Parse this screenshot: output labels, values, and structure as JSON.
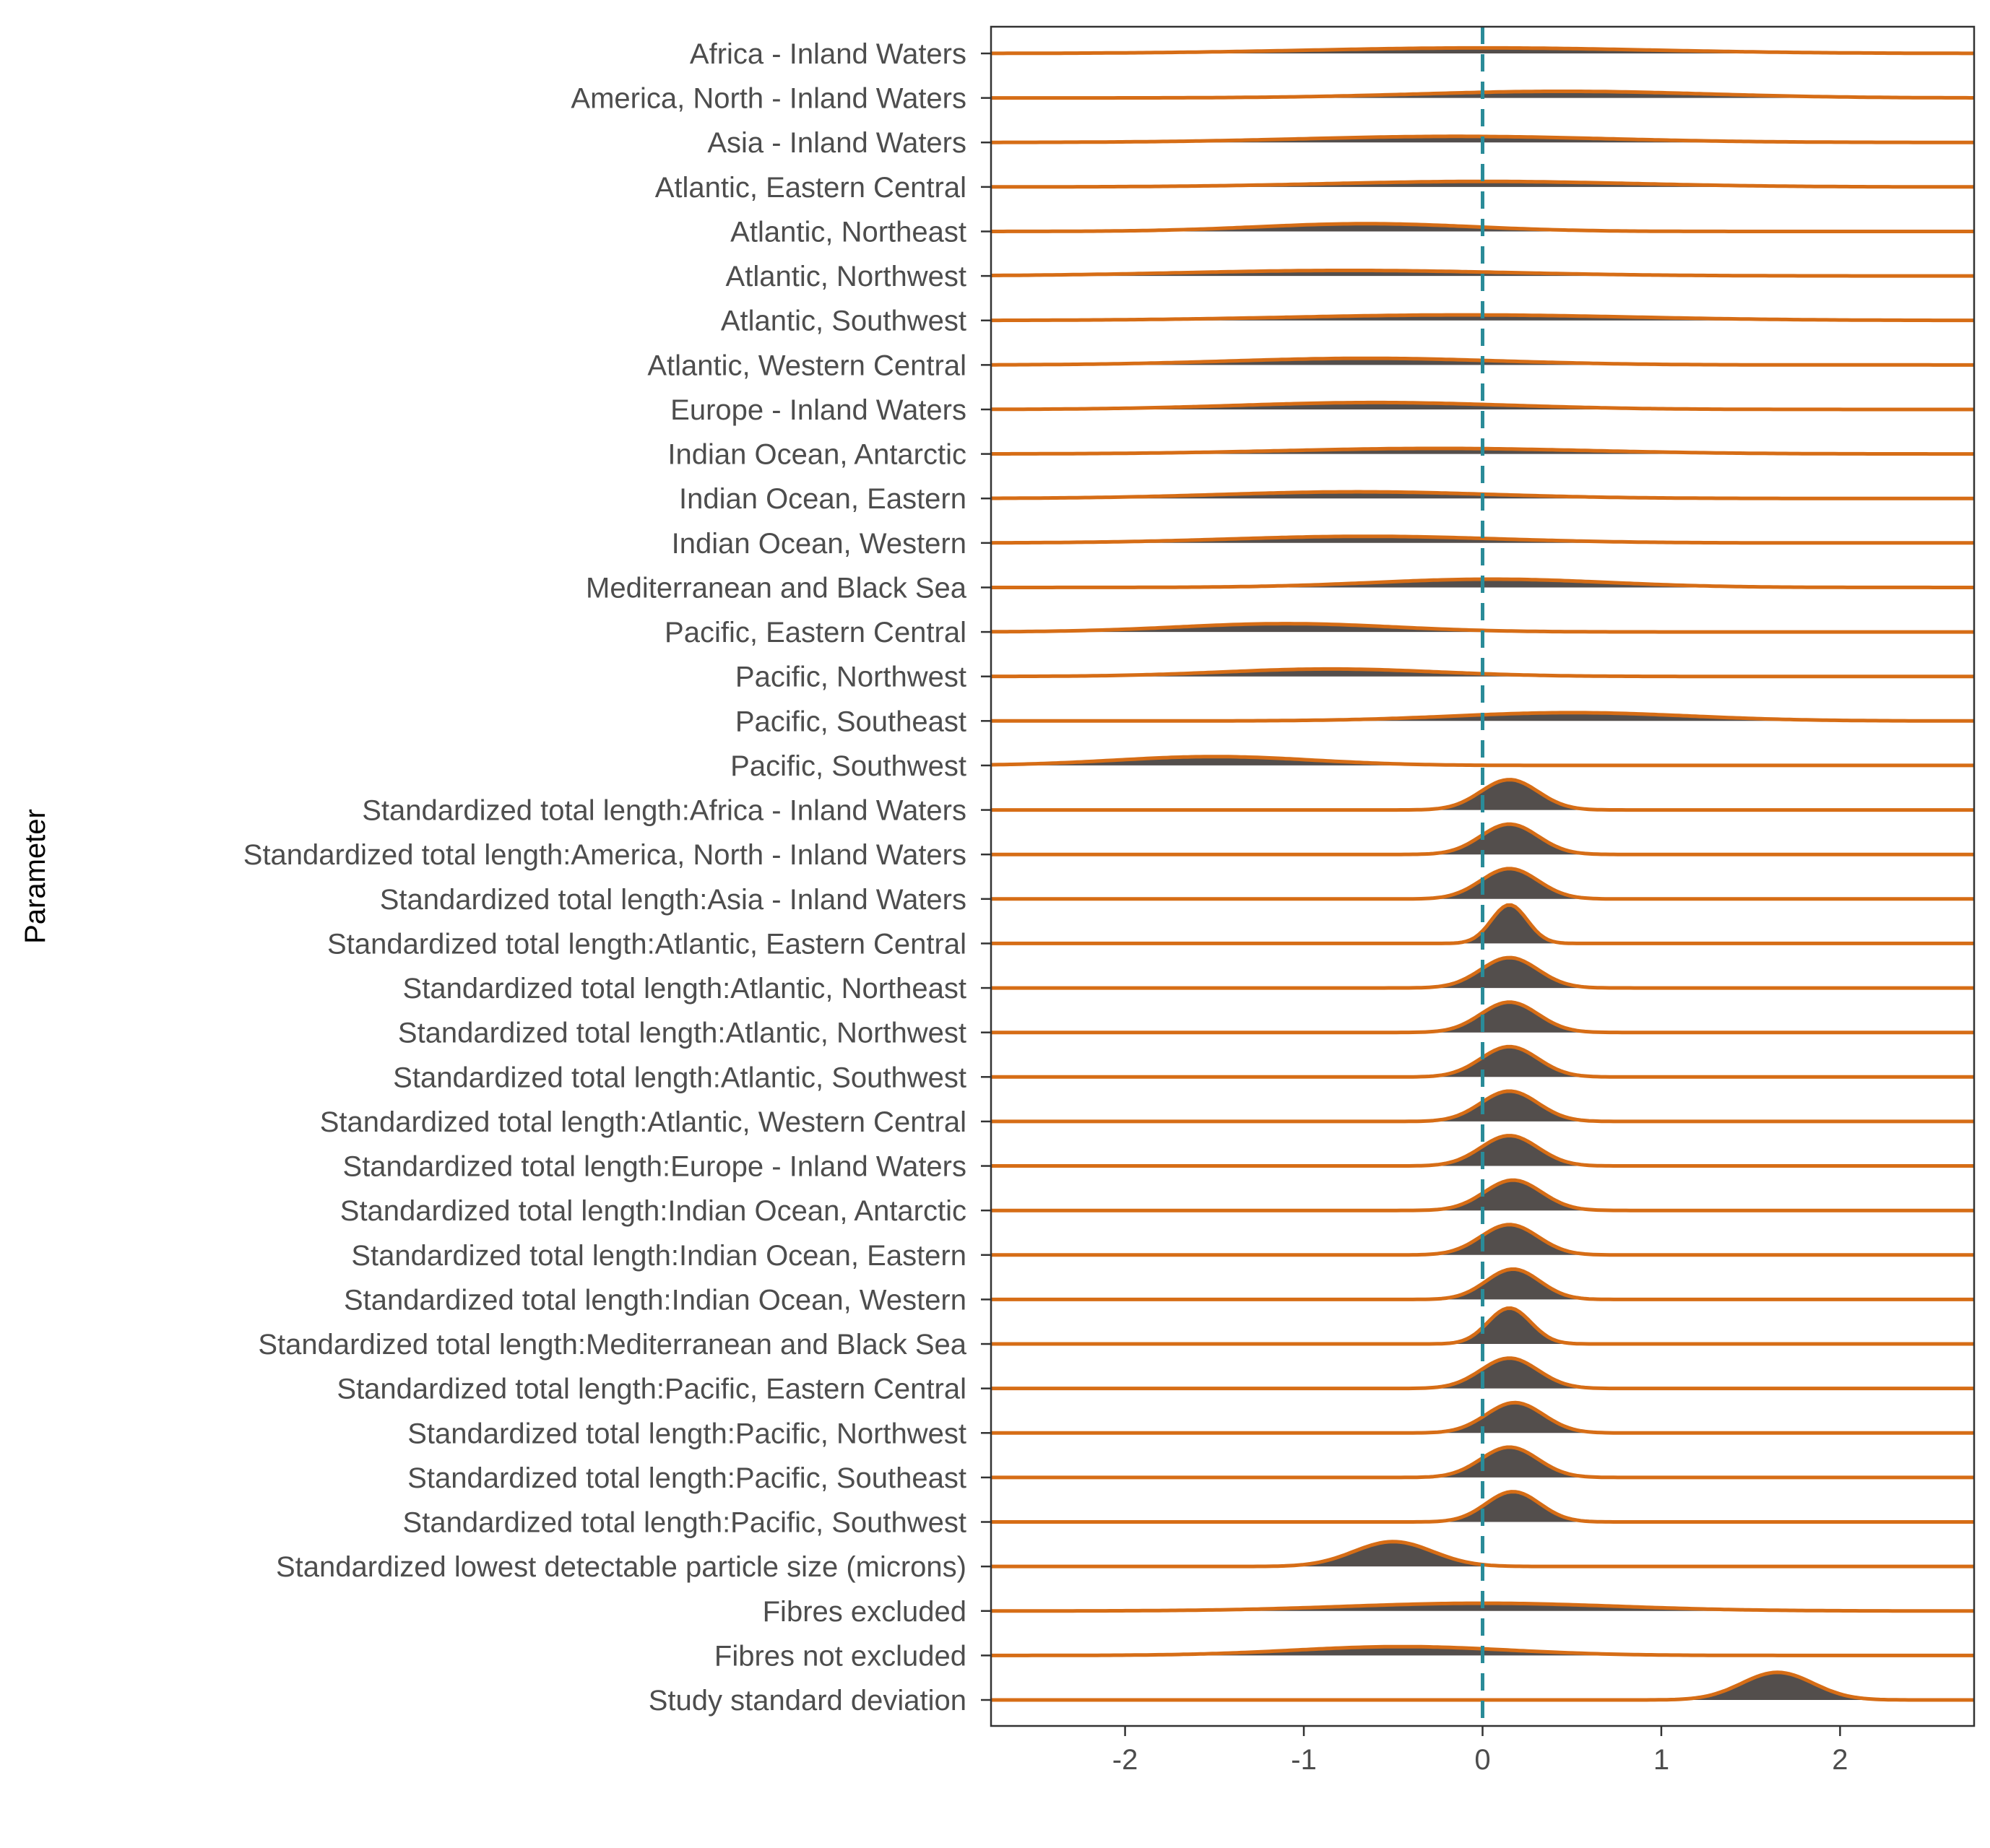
{
  "chart_data": {
    "type": "ridgeline",
    "xlabel": "",
    "ylabel": "Parameter",
    "xlim": [
      -2.75,
      2.75
    ],
    "xticks": [
      -2,
      -1,
      0,
      1,
      2
    ],
    "xtick_labels": [
      "-2",
      "-1",
      "0",
      "1",
      "2"
    ],
    "reference_line_x": 0,
    "grid": false,
    "legend": "none",
    "colors": {
      "fill": "#4a4542",
      "outline": "#d66d16",
      "reference_line": "#2a8b98",
      "axis": "#333333"
    },
    "parameters": [
      {
        "name": "Africa - Inland Waters",
        "mean": 0.0,
        "sd": 0.95,
        "peak": 0.2
      },
      {
        "name": "America, North - Inland Waters",
        "mean": 0.45,
        "sd": 0.8,
        "peak": 0.24
      },
      {
        "name": "Asia - Inland Waters",
        "mean": -0.15,
        "sd": 0.85,
        "peak": 0.22
      },
      {
        "name": "Atlantic, Eastern Central",
        "mean": 0.0,
        "sd": 0.85,
        "peak": 0.2
      },
      {
        "name": "Atlantic, Northeast",
        "mean": -0.65,
        "sd": 0.6,
        "peak": 0.28
      },
      {
        "name": "Atlantic, Northwest",
        "mean": -0.75,
        "sd": 0.9,
        "peak": 0.2
      },
      {
        "name": "Atlantic, Southwest",
        "mean": -0.1,
        "sd": 0.95,
        "peak": 0.2
      },
      {
        "name": "Atlantic, Western Central",
        "mean": -0.65,
        "sd": 0.75,
        "peak": 0.24
      },
      {
        "name": "Europe - Inland Waters",
        "mean": -0.6,
        "sd": 0.75,
        "peak": 0.25
      },
      {
        "name": "Indian Ocean, Antarctic",
        "mean": -0.25,
        "sd": 0.85,
        "peak": 0.2
      },
      {
        "name": "Indian Ocean, Eastern",
        "mean": -0.7,
        "sd": 0.75,
        "peak": 0.24
      },
      {
        "name": "Indian Ocean, Western",
        "mean": -0.65,
        "sd": 0.75,
        "peak": 0.24
      },
      {
        "name": "Mediterranean and Black Sea",
        "mean": 0.05,
        "sd": 0.65,
        "peak": 0.3
      },
      {
        "name": "Pacific, Eastern Central",
        "mean": -1.1,
        "sd": 0.6,
        "peak": 0.3
      },
      {
        "name": "Pacific, Northwest",
        "mean": -0.85,
        "sd": 0.6,
        "peak": 0.27
      },
      {
        "name": "Pacific, Southeast",
        "mean": 0.5,
        "sd": 0.65,
        "peak": 0.3
      },
      {
        "name": "Pacific, Southwest",
        "mean": -1.5,
        "sd": 0.55,
        "peak": 0.32
      },
      {
        "name": "Standardized total length:Africa - Inland Waters",
        "mean": 0.15,
        "sd": 0.16,
        "peak": 1.1
      },
      {
        "name": "Standardized total length:America, North - Inland Waters",
        "mean": 0.15,
        "sd": 0.16,
        "peak": 1.1
      },
      {
        "name": "Standardized total length:Asia - Inland Waters",
        "mean": 0.15,
        "sd": 0.16,
        "peak": 1.1
      },
      {
        "name": "Standardized total length:Atlantic, Eastern Central",
        "mean": 0.15,
        "sd": 0.1,
        "peak": 1.4
      },
      {
        "name": "Standardized total length:Atlantic, Northeast",
        "mean": 0.15,
        "sd": 0.16,
        "peak": 1.1
      },
      {
        "name": "Standardized total length:Atlantic, Northwest",
        "mean": 0.15,
        "sd": 0.16,
        "peak": 1.1
      },
      {
        "name": "Standardized total length:Atlantic, Southwest",
        "mean": 0.15,
        "sd": 0.16,
        "peak": 1.1
      },
      {
        "name": "Standardized total length:Atlantic, Western Central",
        "mean": 0.15,
        "sd": 0.16,
        "peak": 1.1
      },
      {
        "name": "Standardized total length:Europe - Inland Waters",
        "mean": 0.15,
        "sd": 0.16,
        "peak": 1.1
      },
      {
        "name": "Standardized total length:Indian Ocean, Antarctic",
        "mean": 0.17,
        "sd": 0.16,
        "peak": 1.1
      },
      {
        "name": "Standardized total length:Indian Ocean, Eastern",
        "mean": 0.15,
        "sd": 0.16,
        "peak": 1.1
      },
      {
        "name": "Standardized total length:Indian Ocean, Western",
        "mean": 0.17,
        "sd": 0.15,
        "peak": 1.1
      },
      {
        "name": "Standardized total length:Mediterranean and Black Sea",
        "mean": 0.15,
        "sd": 0.12,
        "peak": 1.3
      },
      {
        "name": "Standardized total length:Pacific, Eastern Central",
        "mean": 0.15,
        "sd": 0.16,
        "peak": 1.1
      },
      {
        "name": "Standardized total length:Pacific, Northwest",
        "mean": 0.18,
        "sd": 0.16,
        "peak": 1.1
      },
      {
        "name": "Standardized total length:Pacific, Southeast",
        "mean": 0.15,
        "sd": 0.16,
        "peak": 1.1
      },
      {
        "name": "Standardized total length:Pacific, Southwest",
        "mean": 0.17,
        "sd": 0.15,
        "peak": 1.1
      },
      {
        "name": "Standardized lowest detectable particle size (microns)",
        "mean": -0.5,
        "sd": 0.22,
        "peak": 0.9
      },
      {
        "name": "Fibres excluded",
        "mean": 0.0,
        "sd": 0.75,
        "peak": 0.28
      },
      {
        "name": "Fibres not excluded",
        "mean": -0.45,
        "sd": 0.6,
        "peak": 0.32
      },
      {
        "name": "Study standard deviation",
        "mean": 1.65,
        "sd": 0.2,
        "peak": 1.0
      }
    ]
  }
}
